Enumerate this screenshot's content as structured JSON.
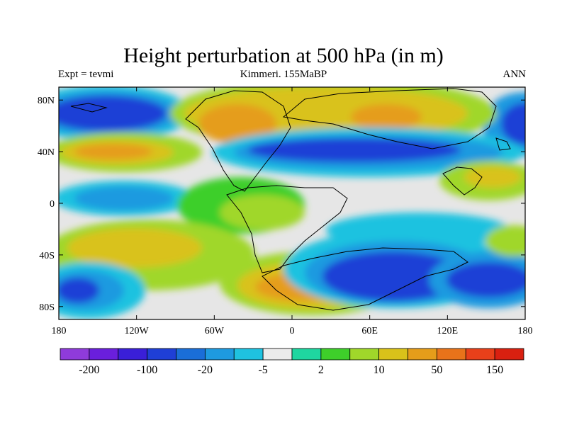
{
  "title": "Height perturbation at 500 hPa (in m)",
  "subtitle_left": "Expt = tevmi",
  "subtitle_center": "Kimmeri. 155MaBP",
  "subtitle_right": "ANN",
  "map": {
    "lon_range": [
      -180,
      180
    ],
    "lat_range": [
      -90,
      90
    ],
    "x_ticks": [
      {
        "value": -180,
        "label": "180"
      },
      {
        "value": -120,
        "label": "120W"
      },
      {
        "value": -60,
        "label": "60W"
      },
      {
        "value": 0,
        "label": "0"
      },
      {
        "value": 60,
        "label": "60E"
      },
      {
        "value": 120,
        "label": "120E"
      },
      {
        "value": 180,
        "label": "180"
      }
    ],
    "y_ticks": [
      {
        "value": 80,
        "label": "80N"
      },
      {
        "value": 40,
        "label": "40N"
      },
      {
        "value": 0,
        "label": "0"
      },
      {
        "value": -40,
        "label": "40S"
      },
      {
        "value": -80,
        "label": "80S"
      }
    ],
    "background_color": "#e6e6e6"
  },
  "colorbar": {
    "colors": [
      "#8f3bdb",
      "#6a1fdc",
      "#3a1fd8",
      "#1f3fd6",
      "#1a6ed8",
      "#1e9ae0",
      "#1fc2e0",
      "#ebebeb",
      "#1fd6a0",
      "#3ecf2a",
      "#a0d72a",
      "#d9c21a",
      "#e59d1a",
      "#e8731a",
      "#e8401a",
      "#d92010"
    ],
    "labels": [
      {
        "after_box": 1,
        "text": "-200"
      },
      {
        "after_box": 3,
        "text": "-100"
      },
      {
        "after_box": 5,
        "text": "-20"
      },
      {
        "after_box": 7,
        "text": "-5"
      },
      {
        "after_box": 9,
        "text": "2"
      },
      {
        "after_box": 11,
        "text": "10"
      },
      {
        "after_box": 13,
        "text": "50"
      },
      {
        "after_box": 15,
        "text": "150"
      }
    ]
  }
}
